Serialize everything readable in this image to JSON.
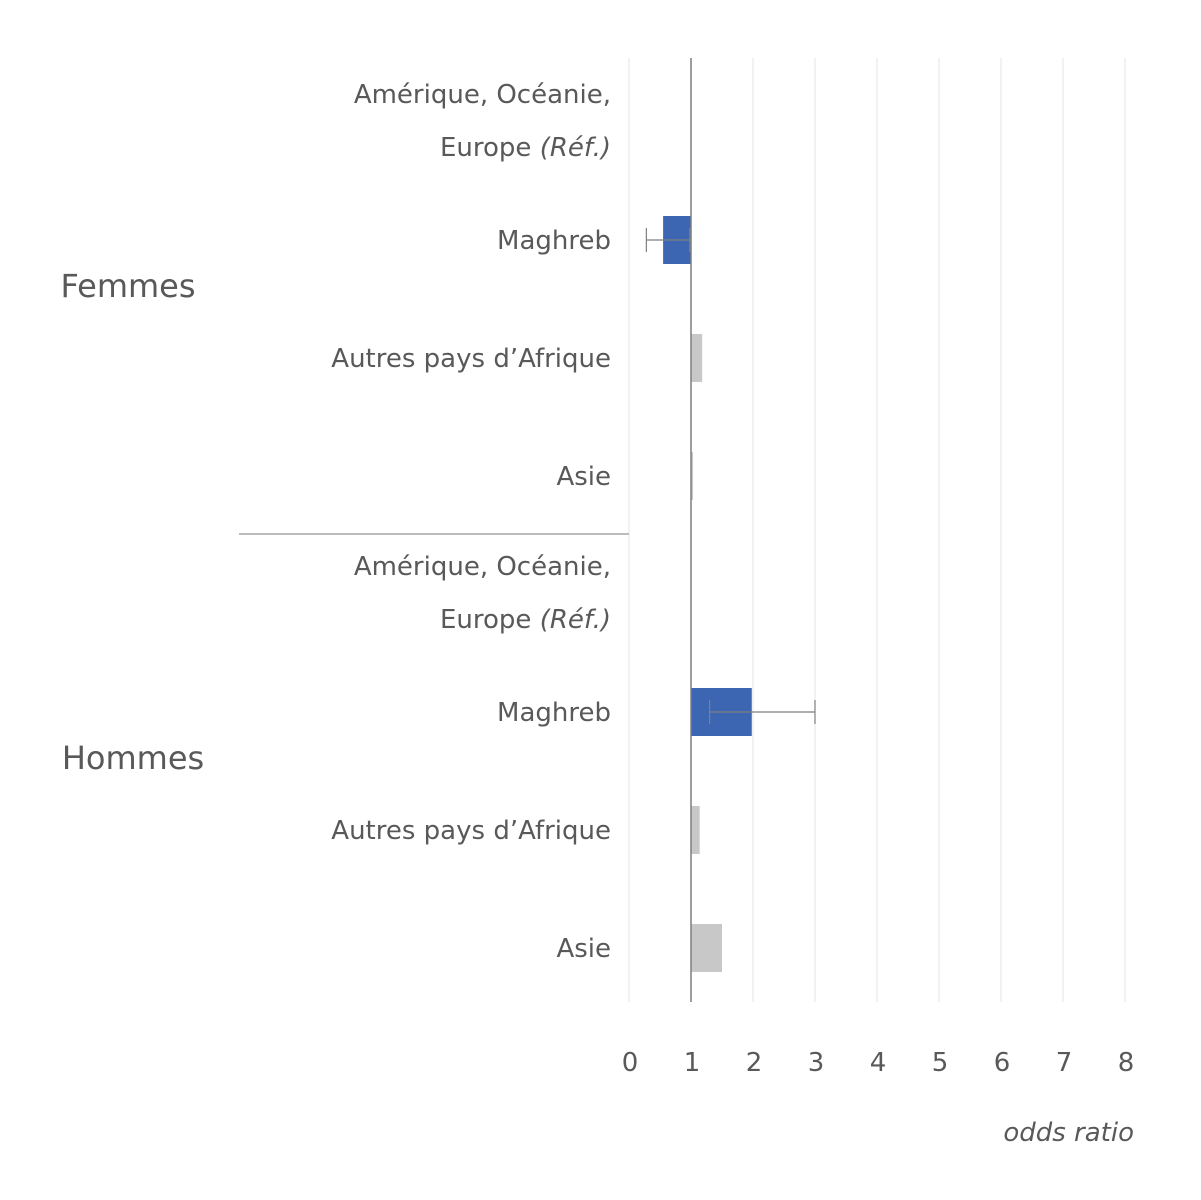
{
  "chart_data": {
    "type": "bar",
    "orientation": "horizontal",
    "xlabel": "odds ratio",
    "xlim": [
      0,
      8
    ],
    "xticks": [
      "0",
      "1",
      "2",
      "3",
      "4",
      "5",
      "6",
      "7",
      "8"
    ],
    "reference_value": 1,
    "colors": {
      "significant": "#3d66b2",
      "not_significant": "#c8c8c8",
      "error_bar": "#7f7f7f",
      "grid": "#e6e6e6"
    },
    "groups": [
      {
        "name": "Femmes",
        "categories": [
          {
            "label_lines": [
              "Amérique, Océanie,",
              "Europe"
            ],
            "label_suffix": "(Réf.)",
            "value": null,
            "reference": true
          },
          {
            "label": "Maghreb",
            "value": 0.55,
            "significant": true,
            "error_low": 0.28,
            "error_high": 0.98
          },
          {
            "label": "Autres pays d’Afrique",
            "value": 1.18,
            "significant": false
          },
          {
            "label": "Asie",
            "value": 1.03,
            "significant": false
          }
        ]
      },
      {
        "name": "Hommes",
        "categories": [
          {
            "label_lines": [
              "Amérique, Océanie,",
              "Europe"
            ],
            "label_suffix": "(Réf.)",
            "value": null,
            "reference": true
          },
          {
            "label": "Maghreb",
            "value": 1.98,
            "significant": true,
            "error_low": 1.3,
            "error_high": 3.0
          },
          {
            "label": "Autres pays d’Afrique",
            "value": 1.14,
            "significant": false
          },
          {
            "label": "Asie",
            "value": 1.5,
            "significant": false
          }
        ]
      }
    ]
  }
}
